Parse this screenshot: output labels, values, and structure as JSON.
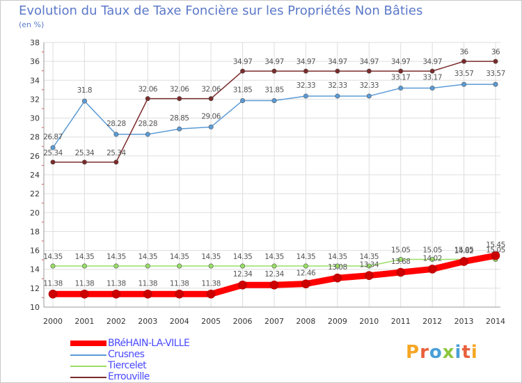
{
  "chart_data": {
    "type": "line",
    "title": "Evolution du Taux de Taxe Foncière sur les Propriétés Non Bâties",
    "ylabel": "(en %)",
    "xlabel": "",
    "x": [
      "2000",
      "2001",
      "2002",
      "2003",
      "2004",
      "2005",
      "2006",
      "2007",
      "2008",
      "2009",
      "2010",
      "2011",
      "2012",
      "2013",
      "2014"
    ],
    "ylim": [
      10,
      38
    ],
    "yticks": [
      10,
      12,
      14,
      16,
      18,
      20,
      22,
      24,
      26,
      28,
      30,
      32,
      34,
      36,
      38
    ],
    "grid": true,
    "legend_position": "bottom-left",
    "series": [
      {
        "name": "BRéHAIN-LA-VILLE",
        "color": "#ff0000",
        "values": [
          11.38,
          11.38,
          11.38,
          11.38,
          11.38,
          11.38,
          12.34,
          12.34,
          12.46,
          13.08,
          13.34,
          13.68,
          14.02,
          14.82,
          15.45
        ],
        "labels": [
          "11.38",
          "11.38",
          "11.38",
          "11.38",
          "11.38",
          "11.38",
          "12.34",
          "12.34",
          "12.46",
          "13.08",
          "13.34",
          "13.68",
          "14.02",
          "14.82",
          "15.45"
        ]
      },
      {
        "name": "Crusnes",
        "color": "#5b9bd5",
        "values": [
          26.87,
          31.8,
          28.28,
          28.28,
          28.85,
          29.06,
          31.85,
          31.85,
          32.33,
          32.33,
          32.33,
          33.17,
          33.17,
          33.57,
          33.57
        ],
        "labels": [
          "26.87",
          "31.8",
          "28.28",
          "28.28",
          "28.85",
          "29.06",
          "31.85",
          "31.85",
          "32.33",
          "32.33",
          "32.33",
          "33.17",
          "33.17",
          "33.57",
          "33.57"
        ]
      },
      {
        "name": "Tiercelet",
        "color": "#99dd66",
        "values": [
          14.35,
          14.35,
          14.35,
          14.35,
          14.35,
          14.35,
          14.35,
          14.35,
          14.35,
          14.35,
          14.35,
          15.05,
          15.05,
          15.05,
          15.05
        ],
        "labels": [
          "14.35",
          "14.35",
          "14.35",
          "14.35",
          "14.35",
          "14.35",
          "14.35",
          "14.35",
          "14.35",
          "14.35",
          "14.35",
          "15.05",
          "15.05",
          "15.05",
          "15.05"
        ]
      },
      {
        "name": "Errouville",
        "color": "#7a2a2a",
        "values": [
          25.34,
          25.34,
          25.34,
          32.06,
          32.06,
          32.06,
          34.97,
          34.97,
          34.97,
          34.97,
          34.97,
          34.97,
          34.97,
          36,
          36
        ],
        "labels": [
          "25.34",
          "25.34",
          "25.34",
          "32.06",
          "32.06",
          "32.06",
          "34.97",
          "34.97",
          "34.97",
          "34.97",
          "34.97",
          "34.97",
          "34.97",
          "36",
          "36"
        ]
      }
    ]
  },
  "brand": {
    "letters": [
      "P",
      "r",
      "o",
      "x",
      "i",
      "t",
      "i"
    ],
    "colors": [
      "#f5a623",
      "#e8603c",
      "#4a9fd8",
      "#8cc63f",
      "#4a9fd8",
      "#e8603c",
      "#f5a623"
    ]
  }
}
